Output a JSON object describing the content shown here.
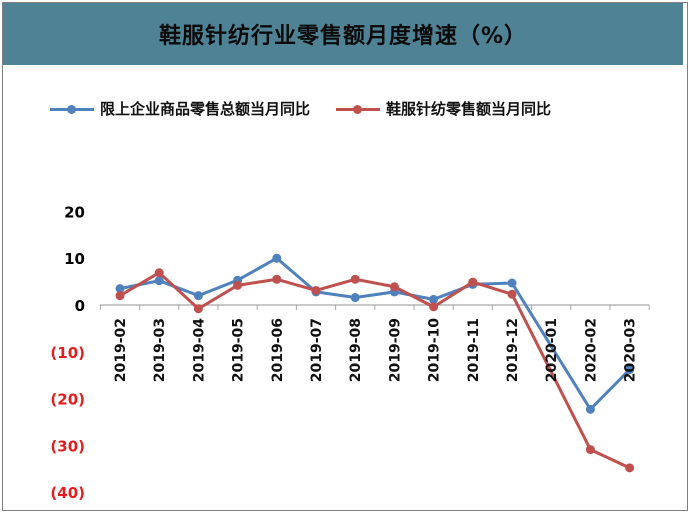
{
  "title": "鞋服针纺行业零售额月度增速（%）",
  "chart_data": {
    "type": "line",
    "title": "鞋服针纺行业零售额月度增速（%）",
    "x": [
      "2019-02",
      "2019-03",
      "2019-04",
      "2019-05",
      "2019-06",
      "2019-07",
      "2019-08",
      "2019-09",
      "2019-10",
      "2019-11",
      "2019-12",
      "2020-01",
      "2020-02",
      "2020-03"
    ],
    "y_ticks": [
      {
        "value": 20,
        "label": "20"
      },
      {
        "value": 10,
        "label": "10"
      },
      {
        "value": 0,
        "label": "0"
      },
      {
        "value": -10,
        "label": "(10)"
      },
      {
        "value": -20,
        "label": "(20)"
      },
      {
        "value": -30,
        "label": "(30)"
      },
      {
        "value": -40,
        "label": "(40)"
      }
    ],
    "ylim": [
      -40,
      20
    ],
    "legend_position": "top",
    "grid": false,
    "series": [
      {
        "name": "限上企业商品零售总额当月同比",
        "color": "#4f81bd",
        "values": [
          3.5,
          5.2,
          2.0,
          5.3,
          10.0,
          2.8,
          1.6,
          2.8,
          1.2,
          4.4,
          4.7,
          null,
          -22.3,
          -13.8
        ]
      },
      {
        "name": "鞋服针纺零售额当月同比",
        "color": "#c0504d",
        "values": [
          2.0,
          6.9,
          -0.8,
          4.2,
          5.5,
          3.1,
          5.5,
          3.9,
          -0.4,
          4.9,
          2.3,
          null,
          -30.9,
          -34.8
        ]
      }
    ],
    "colors": {
      "negative_tick": "#e31e1e",
      "positive_tick": "#000000",
      "axis": "#a6a6a6"
    }
  }
}
